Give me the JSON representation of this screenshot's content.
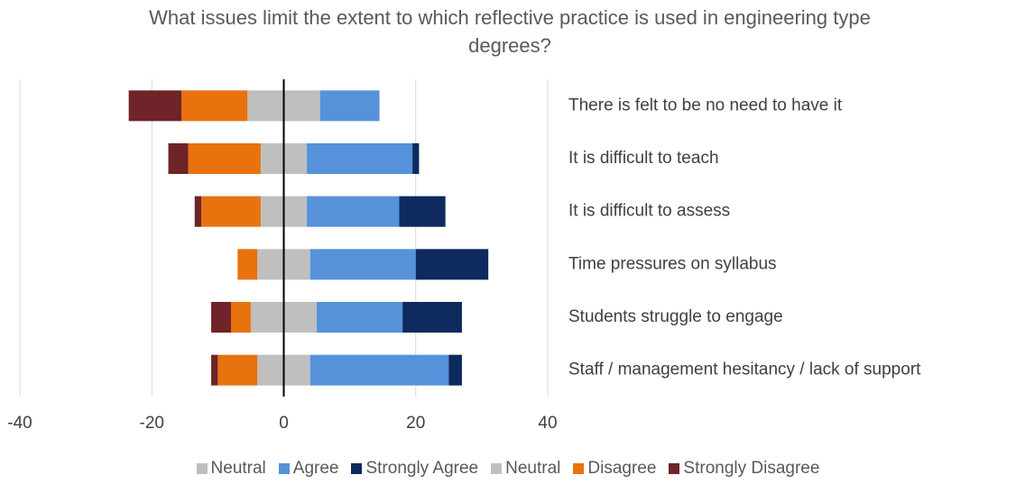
{
  "chart_data": {
    "type": "diverging-bar",
    "title": "What issues limit the extent to which reflective practice is used in engineering type degrees?",
    "categories": [
      "There is felt to be no need to have it",
      "It is difficult to teach",
      "It is difficult to assess",
      "Time pressures on syllabus",
      "Students  struggle to engage",
      "Staff / management hesitancy / lack of support"
    ],
    "series": [
      {
        "name": "Neutral",
        "color": "#bfbfbf",
        "values": [
          5.5,
          3.5,
          3.5,
          4,
          5,
          4
        ]
      },
      {
        "name": "Agree",
        "color": "#5592d9",
        "values": [
          9,
          16,
          14,
          16,
          13,
          21
        ]
      },
      {
        "name": "Strongly Agree",
        "color": "#0e2a5e",
        "values": [
          0,
          1,
          7,
          11,
          9,
          2
        ]
      },
      {
        "name": "Neutral",
        "color": "#bfbfbf",
        "values": [
          -5.5,
          -3.5,
          -3.5,
          -4,
          -5,
          -4
        ]
      },
      {
        "name": "Disagree",
        "color": "#e8720e",
        "values": [
          -10,
          -11,
          -9,
          -3,
          -3,
          -6
        ]
      },
      {
        "name": "Strongly Disagree",
        "color": "#6e2428",
        "values": [
          -8,
          -3,
          -1,
          0,
          -3,
          -1
        ]
      }
    ],
    "xlim": [
      -40,
      40
    ],
    "xticks": [
      -40,
      -20,
      0,
      20,
      40
    ],
    "grid": true
  }
}
